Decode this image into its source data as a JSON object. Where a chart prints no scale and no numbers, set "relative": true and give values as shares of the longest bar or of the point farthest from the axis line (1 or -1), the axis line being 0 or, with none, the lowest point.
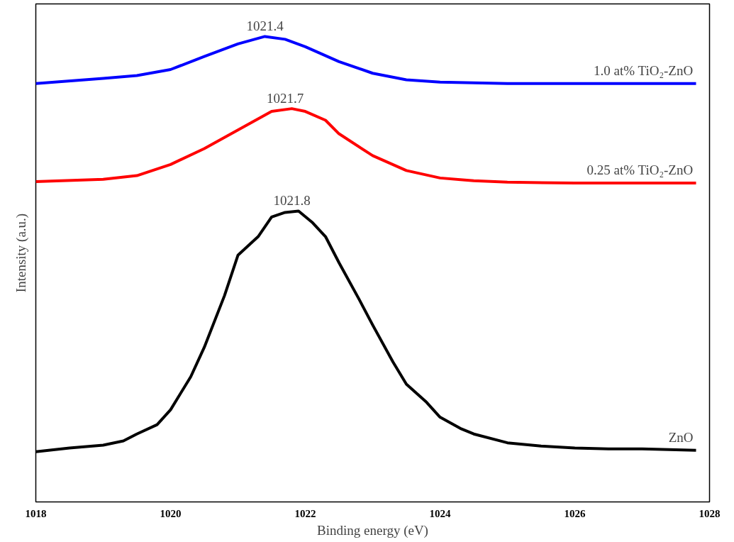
{
  "chart_data": {
    "type": "line",
    "relative": true,
    "xlabel": "Binding energy (eV)",
    "ylabel": "Intensity (a.u.)",
    "xlim": [
      1018,
      1028
    ],
    "xticks": [
      1018,
      1020,
      1022,
      1024,
      1026,
      1028
    ],
    "tick_labels": "x",
    "grid": false,
    "legend": false,
    "marker": "none",
    "line_style": "solid",
    "series": [
      {
        "name": "ZnO",
        "color": "#000000",
        "x": [
          1018,
          1018.5,
          1019,
          1019.3,
          1019.5,
          1019.8,
          1020,
          1020.3,
          1020.5,
          1020.8,
          1021,
          1021.3,
          1021.5,
          1021.7,
          1021.9,
          1022.1,
          1022.3,
          1022.5,
          1022.8,
          1023,
          1023.3,
          1023.5,
          1023.8,
          1024,
          1024.3,
          1024.5,
          1025,
          1025.5,
          1026,
          1026.5,
          1027,
          1027.8
        ],
        "values": [
          0.108,
          0.116,
          0.122,
          0.131,
          0.146,
          0.166,
          0.198,
          0.269,
          0.332,
          0.443,
          0.53,
          0.57,
          0.612,
          0.622,
          0.625,
          0.601,
          0.57,
          0.514,
          0.435,
          0.38,
          0.301,
          0.253,
          0.214,
          0.182,
          0.158,
          0.146,
          0.127,
          0.12,
          0.116,
          0.114,
          0.114,
          0.111
        ]
      },
      {
        "name": "0.25 at% TiO₂-ZnO",
        "color": "#ff0000",
        "x": [
          1018,
          1019,
          1019.5,
          1020,
          1020.5,
          1021,
          1021.3,
          1021.5,
          1021.8,
          1022,
          1022.3,
          1022.5,
          1023,
          1023.5,
          1024,
          1024.5,
          1025,
          1026,
          1027.8
        ],
        "values": [
          0.688,
          0.693,
          0.701,
          0.725,
          0.759,
          0.799,
          0.823,
          0.839,
          0.845,
          0.839,
          0.82,
          0.791,
          0.744,
          0.712,
          0.696,
          0.69,
          0.687,
          0.685,
          0.685
        ]
      },
      {
        "name": "1.0 at% TiO₂-ZnO",
        "color": "#0000ff",
        "x": [
          1018,
          1019,
          1019.5,
          1020,
          1020.5,
          1021,
          1021.4,
          1021.7,
          1022,
          1022.5,
          1023,
          1023.5,
          1024,
          1025,
          1027.8
        ],
        "values": [
          0.899,
          0.91,
          0.916,
          0.929,
          0.957,
          0.984,
          1.0,
          0.994,
          0.978,
          0.946,
          0.921,
          0.907,
          0.902,
          0.899,
          0.899
        ]
      }
    ],
    "annotations": [
      {
        "text": "1021.8",
        "x": 1021.8,
        "y": 0.625
      },
      {
        "text": "1021.7",
        "x": 1021.7,
        "y": 0.845
      },
      {
        "text": "1021.4",
        "x": 1021.4,
        "y": 1.0
      }
    ]
  }
}
